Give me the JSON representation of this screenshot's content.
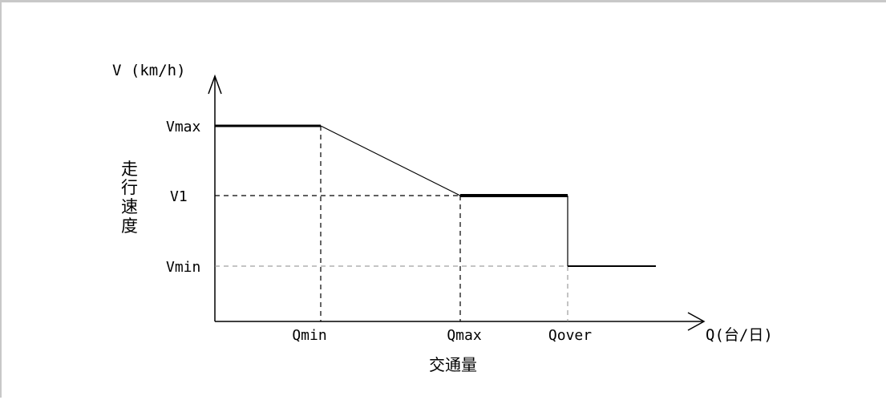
{
  "axes": {
    "y_label": "V (km/h)",
    "x_label": "Q(台/日)",
    "y_title_chars": [
      "走",
      "行",
      "速",
      "度"
    ],
    "x_title": "交通量"
  },
  "y_ticks": {
    "vmax": "Vmax",
    "v1": "V1",
    "vmin": "Vmin"
  },
  "x_ticks": {
    "qmin": "Qmin",
    "qmax": "Qmax",
    "qover": "Qover"
  },
  "colors": {
    "line": "#000000",
    "frame": "#c8c8c8",
    "light_dash": "#888888"
  }
}
